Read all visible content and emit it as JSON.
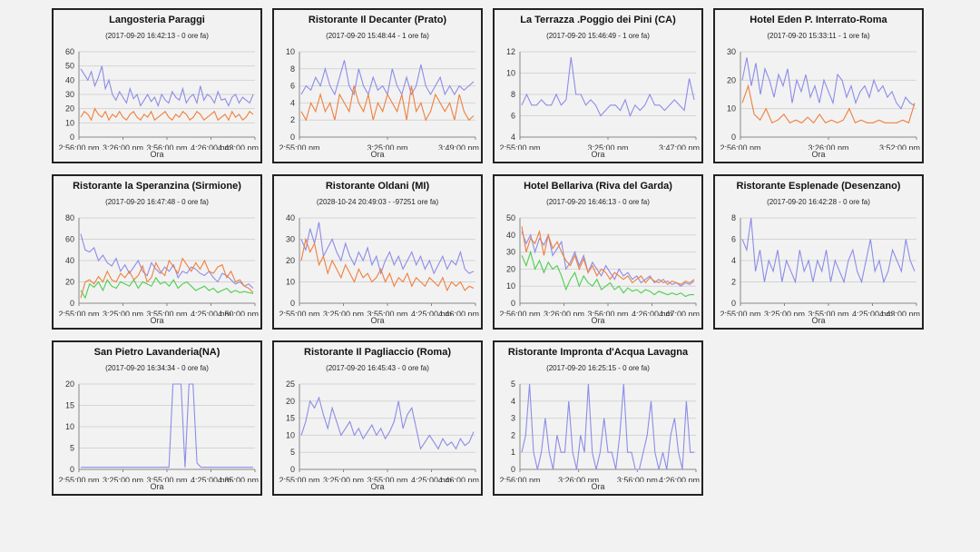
{
  "xaxis_label": "Ora",
  "chart_data": [
    {
      "type": "line",
      "title": "Langosteria Paraggi",
      "subtitle": "(2017-09-20 16:42:13 - 0 ore fa)",
      "xlabel": "Ora",
      "ylim": [
        0,
        60
      ],
      "yticks": [
        0,
        10,
        20,
        30,
        40,
        50,
        60
      ],
      "xticks": [
        "2:56:00 pm",
        "3:26:00 pm",
        "3:56:00 pm",
        "4:26:00 pm",
        "4:43:00 pm"
      ],
      "series": [
        {
          "name": "s1",
          "color": "#8c8ce8",
          "values": [
            48,
            44,
            40,
            46,
            36,
            42,
            50,
            34,
            40,
            30,
            26,
            32,
            28,
            24,
            34,
            27,
            30,
            22,
            26,
            30,
            25,
            28,
            22,
            30,
            26,
            24,
            32,
            28,
            26,
            34,
            24,
            28,
            30,
            24,
            36,
            26,
            30,
            28,
            24,
            32,
            26,
            27,
            22,
            28,
            30,
            24,
            28,
            26,
            24,
            30
          ]
        },
        {
          "name": "s2",
          "color": "#f07f3c",
          "values": [
            14,
            18,
            16,
            12,
            20,
            16,
            14,
            18,
            12,
            16,
            14,
            18,
            14,
            12,
            16,
            18,
            14,
            12,
            16,
            14,
            18,
            12,
            14,
            16,
            18,
            14,
            12,
            16,
            14,
            18,
            16,
            12,
            14,
            18,
            16,
            12,
            14,
            16,
            18,
            12,
            14,
            16,
            12,
            18,
            14,
            16,
            12,
            14,
            18,
            16
          ]
        }
      ]
    },
    {
      "type": "line",
      "title": "Ristorante Il Decanter (Prato)",
      "subtitle": "(2017-09-20 15:48:44 - 1 ore fa)",
      "xlabel": "Ora",
      "ylim": [
        0,
        10
      ],
      "yticks": [
        0,
        2,
        4,
        6,
        8,
        10
      ],
      "xticks": [
        "2:55:00 pm",
        "3:25:00 pm",
        "3:49:00 pm"
      ],
      "series": [
        {
          "name": "s1",
          "color": "#8c8ce8",
          "values": [
            5,
            6,
            5.5,
            7,
            6,
            8,
            6,
            5,
            7,
            9,
            6,
            5,
            8,
            6,
            5,
            7,
            5.5,
            6,
            5,
            8,
            6,
            5,
            7,
            5,
            6,
            8.5,
            6,
            5,
            6,
            7,
            5,
            6,
            5,
            6,
            5.5,
            6,
            6.5
          ]
        },
        {
          "name": "s2",
          "color": "#f07f3c",
          "values": [
            3,
            2,
            4,
            3,
            5,
            3,
            4,
            2,
            5,
            4,
            3,
            6,
            4,
            3,
            5,
            2,
            4,
            3,
            5,
            4,
            3,
            5,
            2,
            6,
            3,
            4,
            2,
            3,
            5,
            4,
            3,
            4,
            2,
            5,
            3,
            2,
            2.5
          ]
        }
      ]
    },
    {
      "type": "line",
      "title": "La Terrazza .Poggio dei Pini (CA)",
      "subtitle": "(2017-09-20 15:46:49 - 1 ore fa)",
      "xlabel": "Ora",
      "ylim": [
        4,
        12
      ],
      "yticks": [
        4,
        6,
        8,
        10,
        12
      ],
      "xticks": [
        "2:55:00 pm",
        "3:25:00 pm",
        "3:47:00 pm"
      ],
      "series": [
        {
          "name": "s1",
          "color": "#8c8ce8",
          "values": [
            7,
            8,
            7,
            7,
            7.5,
            7,
            7,
            8,
            7,
            7.5,
            11.5,
            8,
            8,
            7,
            7.5,
            7,
            6,
            6.5,
            7,
            7,
            6.5,
            7.5,
            6,
            7,
            6.5,
            7,
            8,
            7,
            7,
            6.5,
            7,
            7.5,
            7,
            6.5,
            9.5,
            7.5
          ]
        }
      ]
    },
    {
      "type": "line",
      "title": "Hotel Eden P. Interrato-Roma",
      "subtitle": "(2017-09-20 15:33:11 - 1 ore fa)",
      "xlabel": "Ora",
      "ylim": [
        0,
        30
      ],
      "yticks": [
        0,
        10,
        20,
        30
      ],
      "xticks": [
        "2:56:00 pm",
        "3:26:00 pm",
        "3:52:00 pm"
      ],
      "series": [
        {
          "name": "s1",
          "color": "#8c8ce8",
          "values": [
            20,
            28,
            18,
            26,
            15,
            24,
            20,
            14,
            22,
            18,
            24,
            12,
            20,
            16,
            22,
            14,
            18,
            12,
            20,
            16,
            12,
            22,
            20,
            14,
            18,
            12,
            16,
            18,
            14,
            20,
            16,
            18,
            14,
            16,
            12,
            10,
            14,
            12,
            11
          ]
        },
        {
          "name": "s2",
          "color": "#f07f3c",
          "values": [
            12,
            18,
            8,
            6,
            10,
            5,
            6,
            8,
            5,
            6,
            5,
            7,
            5,
            8,
            5,
            6,
            5,
            6,
            10,
            5,
            6,
            5,
            5,
            6,
            5,
            5,
            5,
            6,
            5,
            12
          ]
        }
      ]
    },
    {
      "type": "line",
      "title": "Ristorante la Speranzina (Sirmione)",
      "subtitle": "(2017-09-20 16:47:48 - 0 ore fa)",
      "xlabel": "Ora",
      "ylim": [
        0,
        80
      ],
      "yticks": [
        0,
        20,
        40,
        60,
        80
      ],
      "xticks": [
        "2:55:00 pm",
        "3:25:00 pm",
        "3:55:00 pm",
        "4:25:00 pm",
        "4:50:00 pm"
      ],
      "series": [
        {
          "name": "s1",
          "color": "#8c8ce8",
          "values": [
            65,
            50,
            48,
            52,
            40,
            45,
            38,
            35,
            42,
            30,
            36,
            28,
            34,
            40,
            30,
            26,
            38,
            32,
            28,
            34,
            30,
            36,
            24,
            30,
            28,
            34,
            32,
            28,
            26,
            30,
            24,
            20,
            28,
            26,
            22,
            18,
            20,
            16,
            18,
            14
          ]
        },
        {
          "name": "s2",
          "color": "#f07f3c",
          "values": [
            5,
            20,
            22,
            18,
            25,
            20,
            30,
            22,
            20,
            28,
            24,
            30,
            22,
            26,
            35,
            20,
            24,
            38,
            30,
            26,
            40,
            34,
            28,
            42,
            36,
            30,
            38,
            32,
            40,
            30,
            28,
            34,
            36,
            24,
            30,
            20,
            22,
            16,
            14,
            10
          ]
        },
        {
          "name": "s3",
          "color": "#4ccf4c",
          "values": [
            12,
            5,
            18,
            15,
            20,
            12,
            22,
            16,
            14,
            20,
            18,
            16,
            22,
            14,
            20,
            18,
            16,
            24,
            18,
            20,
            16,
            22,
            14,
            18,
            20,
            16,
            12,
            14,
            16,
            12,
            14,
            10,
            12,
            14,
            10,
            12,
            10,
            11,
            10,
            9
          ]
        }
      ]
    },
    {
      "type": "line",
      "title": "Ristorante Oldani (MI)",
      "subtitle": "(2028-10-24 20:49:03 - -97251 ore fa)",
      "xlabel": "Ora",
      "ylim": [
        0,
        40
      ],
      "yticks": [
        0,
        10,
        20,
        30,
        40
      ],
      "xticks": [
        "2:55:00 pm",
        "3:25:00 pm",
        "3:55:00 pm",
        "4:25:00 pm",
        "4:46:00 pm"
      ],
      "series": [
        {
          "name": "s1",
          "color": "#8c8ce8",
          "values": [
            30,
            25,
            35,
            28,
            38,
            22,
            26,
            30,
            24,
            20,
            28,
            22,
            18,
            24,
            20,
            26,
            18,
            22,
            14,
            20,
            24,
            18,
            22,
            16,
            20,
            24,
            18,
            22,
            16,
            20,
            14,
            18,
            22,
            16,
            20,
            18,
            24,
            16,
            14,
            15
          ]
        },
        {
          "name": "s2",
          "color": "#f07f3c",
          "values": [
            20,
            30,
            24,
            28,
            18,
            22,
            14,
            20,
            16,
            12,
            18,
            14,
            10,
            16,
            12,
            14,
            10,
            12,
            16,
            10,
            14,
            8,
            12,
            10,
            14,
            8,
            12,
            10,
            8,
            12,
            10,
            8,
            12,
            6,
            10,
            8,
            10,
            6,
            8,
            7
          ]
        }
      ]
    },
    {
      "type": "line",
      "title": "Hotel Bellariva (Riva del Garda)",
      "subtitle": "(2017-09-20 16:46:13 - 0 ore fa)",
      "xlabel": "Ora",
      "ylim": [
        0,
        50
      ],
      "yticks": [
        0,
        10,
        20,
        30,
        40,
        50
      ],
      "xticks": [
        "2:56:00 pm",
        "3:26:00 pm",
        "3:56:00 pm",
        "4:26:00 pm",
        "4:47:00 pm"
      ],
      "series": [
        {
          "name": "s1",
          "color": "#8c8ce8",
          "values": [
            42,
            35,
            40,
            30,
            38,
            34,
            40,
            28,
            32,
            36,
            20,
            24,
            30,
            22,
            28,
            18,
            24,
            20,
            16,
            22,
            18,
            14,
            20,
            16,
            18,
            14,
            16,
            12,
            14,
            16,
            12,
            14,
            12,
            13,
            11,
            12,
            10,
            12,
            11,
            13
          ]
        },
        {
          "name": "s2",
          "color": "#f07f3c",
          "values": [
            45,
            30,
            38,
            35,
            42,
            28,
            40,
            32,
            36,
            30,
            25,
            22,
            28,
            20,
            26,
            18,
            22,
            16,
            20,
            18,
            14,
            18,
            16,
            14,
            16,
            12,
            14,
            16,
            12,
            15,
            13,
            12,
            14,
            11,
            13,
            12,
            11,
            13,
            12,
            14
          ]
        },
        {
          "name": "s3",
          "color": "#4ccf4c",
          "values": [
            28,
            22,
            30,
            20,
            25,
            18,
            24,
            20,
            22,
            16,
            8,
            14,
            18,
            10,
            16,
            12,
            10,
            14,
            8,
            10,
            12,
            8,
            10,
            6,
            9,
            7,
            8,
            6,
            8,
            7,
            5,
            7,
            6,
            5,
            6,
            5,
            6,
            4,
            5,
            5
          ]
        }
      ]
    },
    {
      "type": "line",
      "title": "Ristorante Esplenade (Desenzano)",
      "subtitle": "(2017-09-20 16:42:28 - 0 ore fa)",
      "xlabel": "Ora",
      "ylim": [
        0,
        8
      ],
      "yticks": [
        0,
        2,
        4,
        6,
        8
      ],
      "xticks": [
        "2:55:00 pm",
        "3:25:00 pm",
        "3:55:00 pm",
        "4:25:00 pm",
        "4:43:00 pm"
      ],
      "series": [
        {
          "name": "s1",
          "color": "#8c8ce8",
          "values": [
            6,
            5,
            8,
            3,
            5,
            2,
            4,
            3,
            5,
            2,
            4,
            3,
            2,
            5,
            3,
            4,
            2,
            4,
            3,
            5,
            2,
            4,
            3,
            2,
            4,
            5,
            3,
            2,
            4,
            6,
            3,
            4,
            2,
            3,
            5,
            4,
            3,
            6,
            4,
            3
          ]
        }
      ]
    },
    {
      "type": "line",
      "title": "San Pietro Lavanderia(NA)",
      "subtitle": "(2017-09-20 16:34:34 - 0 ore fa)",
      "xlabel": "Ora",
      "ylim": [
        0,
        20
      ],
      "yticks": [
        0,
        5,
        10,
        15,
        20
      ],
      "xticks": [
        "2:55:00 pm",
        "3:25:00 pm",
        "3:55:00 pm",
        "4:25:00 pm",
        "4:35:00 pm"
      ],
      "series": [
        {
          "name": "s1",
          "color": "#8c8ce8",
          "values": [
            0.5,
            0.5,
            0.5,
            0.5,
            0.5,
            0.5,
            0.5,
            0.5,
            0.5,
            0.5,
            0.5,
            0.5,
            0.5,
            0.5,
            0.5,
            0.5,
            0.5,
            0.5,
            0.5,
            0.5,
            0.5,
            0.5,
            0.5,
            20,
            20,
            20,
            0.5,
            20,
            20,
            1.5,
            0.5,
            0.5,
            0.5,
            0.5,
            0.5,
            0.5,
            0.5,
            0.5,
            0.5,
            0.5,
            0.5,
            0.5,
            0.5,
            0.5
          ]
        }
      ]
    },
    {
      "type": "line",
      "title": "Ristorante Il Pagliaccio (Roma)",
      "subtitle": "(2017-09-20 16:45:43 - 0 ore fa)",
      "xlabel": "Ora",
      "ylim": [
        0,
        25
      ],
      "yticks": [
        0,
        5,
        10,
        15,
        20,
        25
      ],
      "xticks": [
        "2:55:00 pm",
        "3:25:00 pm",
        "3:55:00 pm",
        "4:25:00 pm",
        "4:46:00 pm"
      ],
      "series": [
        {
          "name": "s1",
          "color": "#8c8ce8",
          "values": [
            10,
            14,
            20,
            18,
            21,
            16,
            12,
            18,
            14,
            10,
            12,
            14,
            10,
            12,
            9,
            11,
            13,
            10,
            12,
            9,
            11,
            14,
            20,
            12,
            16,
            18,
            12,
            6,
            8,
            10,
            8,
            6,
            9,
            7,
            8,
            6,
            9,
            7,
            8,
            11
          ]
        }
      ]
    },
    {
      "type": "line",
      "title": "Ristorante Impronta d'Acqua Lavagna",
      "subtitle": "(2017-09-20 16:25:15 - 0 ore fa)",
      "xlabel": "Ora",
      "ylim": [
        0,
        5
      ],
      "yticks": [
        0,
        1,
        2,
        3,
        4,
        5
      ],
      "xticks": [
        "2:56:00 pm",
        "3:26:00 pm",
        "3:56:00 pm",
        "4:26:00 pm"
      ],
      "series": [
        {
          "name": "s1",
          "color": "#8c8ce8",
          "values": [
            1,
            2,
            5,
            1,
            0,
            1,
            3,
            1,
            0,
            2,
            1,
            1,
            4,
            1,
            0,
            2,
            1,
            5,
            1,
            0,
            1,
            3,
            1,
            1,
            0,
            2,
            5,
            1,
            1,
            0,
            0,
            1,
            2,
            4,
            1,
            0,
            1,
            0,
            2,
            3,
            1,
            0,
            4,
            1,
            1
          ]
        }
      ]
    }
  ]
}
